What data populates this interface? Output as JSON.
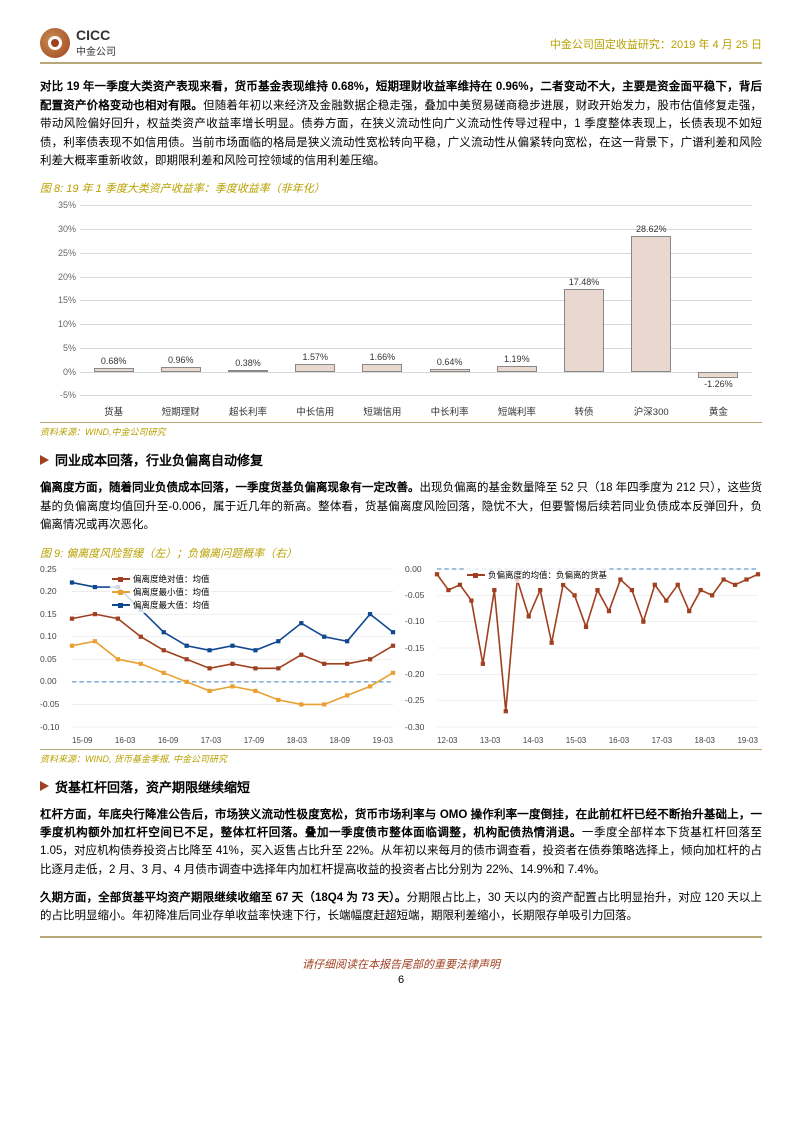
{
  "header": {
    "logo_en": "CICC",
    "logo_cn": "中金公司",
    "right": "中金公司固定收益研究：2019 年 4 月 25 日"
  },
  "para1_bold": "对比 19 年一季度大类资产表现来看，货币基金表现维持 0.68%，短期理财收益率维持在 0.96%，二者变动不大，主要是资金面平稳下，背后配置资产价格变动也相对有限。",
  "para1_rest": "但随着年初以来经济及金融数据企稳走强，叠加中美贸易磋商稳步进展，财政开始发力，股市估值修复走强，带动风险偏好回升，权益类资产收益率增长明显。债券方面，在狭义流动性向广义流动性传导过程中，1 季度整体表现上，长债表现不如短债，利率债表现不如信用债。当前市场面临的格局是狭义流动性宽松转向平稳，广义流动性从偏紧转向宽松，在这一背景下，广谱利差和风险利差大概率重新收敛，即期限利差和风险可控领域的信用利差压缩。",
  "fig8": {
    "title": "图 8: 19 年 1 季度大类资产收益率：季度收益率（非年化）",
    "source": "资料来源：WIND,中金公司研究",
    "categories": [
      "货基",
      "短期理财",
      "超长利率",
      "中长信用",
      "短端信用",
      "中长利率",
      "短端利率",
      "转债",
      "沪深300",
      "黄金"
    ],
    "values": [
      0.68,
      0.96,
      0.38,
      1.57,
      1.66,
      0.64,
      1.19,
      17.48,
      28.62,
      -1.26
    ],
    "value_labels": [
      "0.68%",
      "0.96%",
      "0.38%",
      "1.57%",
      "1.66%",
      "0.64%",
      "1.19%",
      "17.48%",
      "28.62%",
      "-1.26%"
    ],
    "ylim": [
      -5,
      35
    ],
    "ytick_step": 5,
    "bar_color": "#e8d8d0",
    "bar_border": "#888888",
    "grid_color": "#d8d8d8"
  },
  "sec1": {
    "title": "同业成本回落，行业负偏离自动修复"
  },
  "para2_bold": "偏离度方面，随着同业负债成本回落，一季度货基负偏离现象有一定改善。",
  "para2_rest": "出现负偏离的基金数量降至 52 只（18 年四季度为 212 只），这些货基的负偏离度均值回升至-0.006，属于近几年的新高。整体看，货基偏离度风险回落，隐忧不大，但要警惕后续若同业负债成本反弹回升，负偏离情况或再次恶化。",
  "fig9": {
    "title": "图 9: 偏离度风险暂缓（左）；负偏离问题概率（右）",
    "source": "资料来源：WIND, 货币基金季报, 中金公司研究",
    "left": {
      "series": [
        {
          "name": "偏离度绝对值：均值",
          "color": "#a04020",
          "marker": "square",
          "data": [
            0.14,
            0.15,
            0.14,
            0.1,
            0.07,
            0.05,
            0.03,
            0.04,
            0.03,
            0.03,
            0.06,
            0.04,
            0.04,
            0.05,
            0.08
          ]
        },
        {
          "name": "偏离度最小值：均值",
          "color": "#e8a030",
          "marker": "triangle",
          "data": [
            0.08,
            0.09,
            0.05,
            0.04,
            0.02,
            0.0,
            -0.02,
            -0.01,
            -0.02,
            -0.04,
            -0.05,
            -0.05,
            -0.03,
            -0.01,
            0.02
          ]
        },
        {
          "name": "偏离度最大值：均值",
          "color": "#104890",
          "marker": "diamond",
          "data": [
            0.22,
            0.21,
            0.21,
            0.16,
            0.11,
            0.08,
            0.07,
            0.08,
            0.07,
            0.09,
            0.13,
            0.1,
            0.09,
            0.15,
            0.11
          ]
        }
      ],
      "ylim": [
        -0.1,
        0.25
      ],
      "yticks": [
        -0.1,
        -0.05,
        0.0,
        0.05,
        0.1,
        0.15,
        0.2,
        0.25
      ],
      "xlabels": [
        "15-09",
        "16-03",
        "16-09",
        "17-03",
        "17-09",
        "18-03",
        "18-09",
        "19-03"
      ]
    },
    "right": {
      "series": [
        {
          "name": "负偏离度的均值：负偏离的货基",
          "color": "#a04020",
          "marker": "square",
          "data": [
            -0.01,
            -0.04,
            -0.03,
            -0.06,
            -0.18,
            -0.04,
            -0.27,
            -0.02,
            -0.09,
            -0.04,
            -0.14,
            -0.03,
            -0.05,
            -0.11,
            -0.04,
            -0.08,
            -0.02,
            -0.04,
            -0.1,
            -0.03,
            -0.06,
            -0.03,
            -0.08,
            -0.04,
            -0.05,
            -0.02,
            -0.03,
            -0.02,
            -0.01
          ]
        }
      ],
      "ylim": [
        -0.3,
        0.0
      ],
      "yticks": [
        0.0,
        -0.05,
        -0.1,
        -0.15,
        -0.2,
        -0.25,
        -0.3
      ],
      "xlabels": [
        "12-03",
        "13-03",
        "14-03",
        "15-03",
        "16-03",
        "17-03",
        "18-03",
        "19-03"
      ]
    }
  },
  "sec2": {
    "title": "货基杠杆回落，资产期限继续缩短"
  },
  "para3_bold": "杠杆方面，年底央行降准公告后，市场狭义流动性极度宽松，货币市场利率与 OMO 操作利率一度倒挂，在此前杠杆已经不断抬升基础上，一季度机构额外加杠杆空间已不足，整体杠杆回落。叠加一季度债市整体面临调整，机构配债热情消退。",
  "para3_rest": "一季度全部样本下货基杠杆回落至 1.05，对应机构债券投资占比降至 41%，买入返售占比升至 22%。从年初以来每月的债市调查看，投资者在债券策略选择上，倾向加杠杆的占比逐月走低，2 月、3 月、4 月债市调查中选择年内加杠杆提高收益的投资者占比分别为 22%、14.9%和 7.4%。",
  "para4_bold": "久期方面，全部货基平均资产期限继续收缩至 67 天（18Q4 为 73 天）。",
  "para4_rest": "分期限占比上，30 天以内的资产配置占比明显抬升，对应 120 天以上的占比明显缩小。年初降准后同业存单收益率快速下行，长端幅度赶超短端，期限利差缩小，长期限存单吸引力回落。",
  "footer": "请仔细阅读在本报告尾部的重要法律声明",
  "pagenum": "6"
}
